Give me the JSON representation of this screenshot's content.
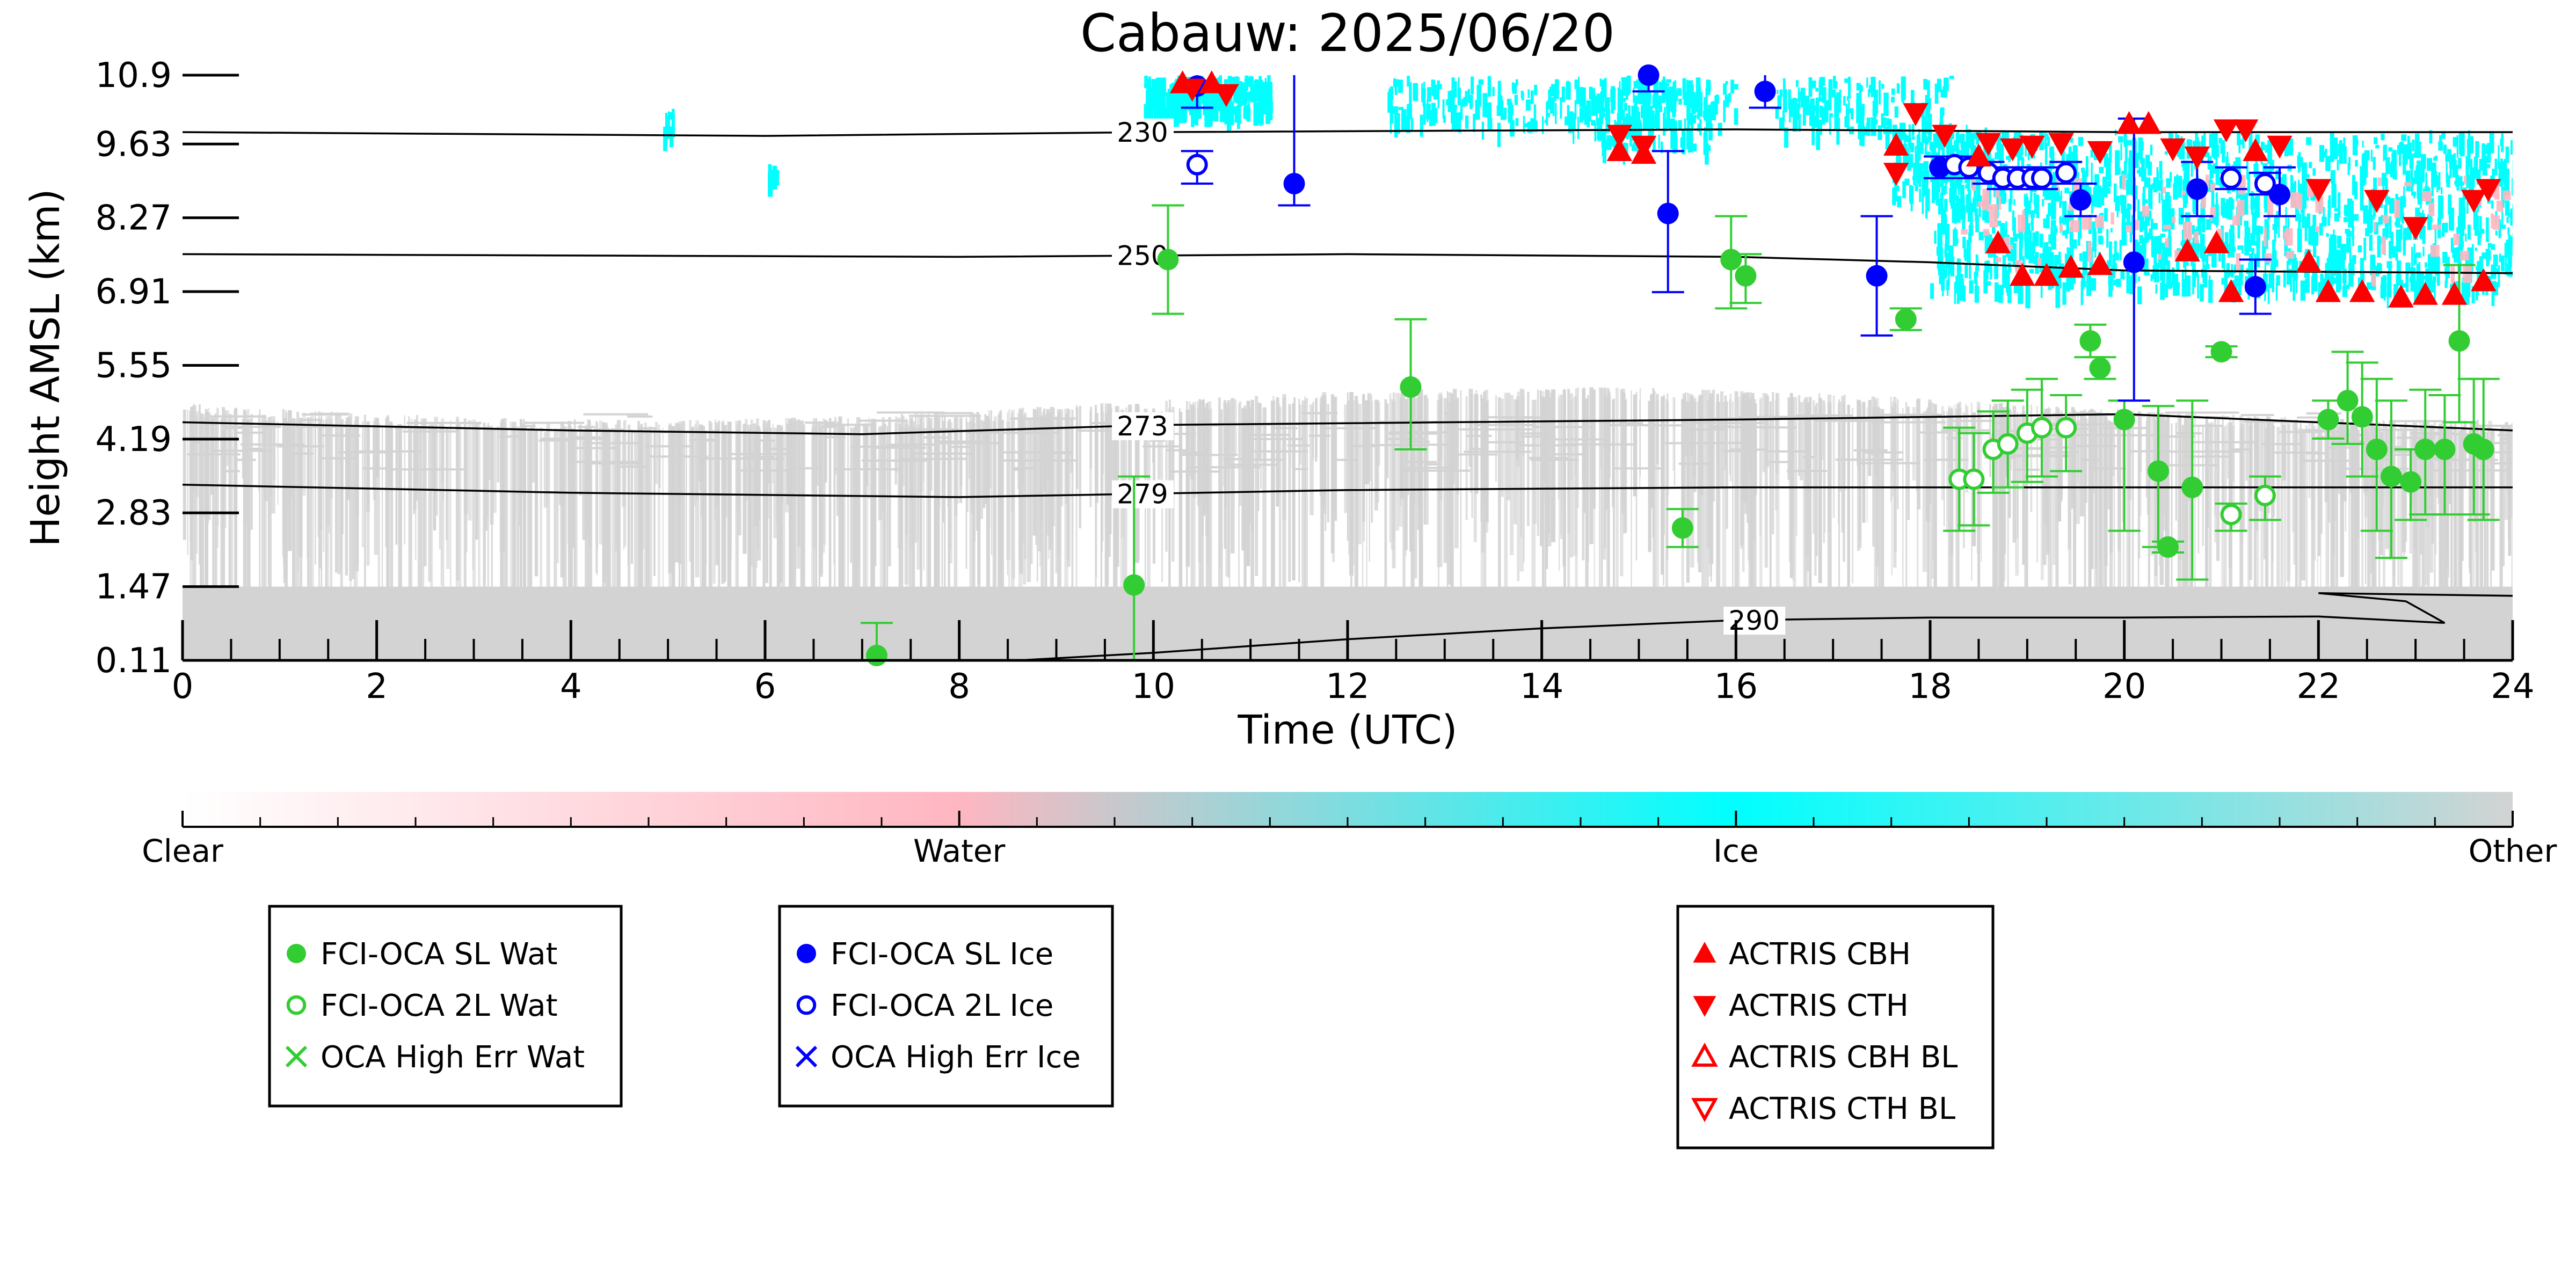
{
  "chart_data": {
    "type": "scatter",
    "title": "Cabauw: 2025/06/20",
    "xlabel": "Time (UTC)",
    "ylabel": "Height AMSL (km)",
    "xlim": [
      0,
      24
    ],
    "ylim": [
      0.11,
      10.9
    ],
    "x_ticks": [
      "0",
      "2",
      "4",
      "6",
      "8",
      "10",
      "12",
      "14",
      "16",
      "18",
      "20",
      "22",
      "24"
    ],
    "y_ticks": [
      "0.11",
      "1.47",
      "2.83",
      "4.19",
      "5.55",
      "6.91",
      "8.27",
      "9.63",
      "10.9"
    ],
    "grid": false,
    "background_cloud_mask": {
      "colorbar_labels": [
        "Clear",
        "Water",
        "Ice",
        "Other"
      ],
      "colors": {
        "clear": "#ffffff",
        "water": "#ffb6c1",
        "ice": "#00ffff",
        "other": "#d3d3d3"
      }
    },
    "temperature_contours": [
      {
        "label": "230",
        "label_time": 9.6,
        "points": [
          [
            0,
            9.85
          ],
          [
            6,
            9.78
          ],
          [
            10,
            9.85
          ],
          [
            16,
            9.9
          ],
          [
            20,
            9.85
          ],
          [
            24,
            9.85
          ]
        ]
      },
      {
        "label": "250",
        "label_time": 9.6,
        "points": [
          [
            0,
            7.6
          ],
          [
            8,
            7.55
          ],
          [
            12,
            7.6
          ],
          [
            16,
            7.55
          ],
          [
            18,
            7.45
          ],
          [
            20,
            7.3
          ],
          [
            24,
            7.25
          ]
        ]
      },
      {
        "label": "273",
        "label_time": 9.6,
        "points": [
          [
            0,
            4.5
          ],
          [
            4,
            4.35
          ],
          [
            7,
            4.28
          ],
          [
            10,
            4.45
          ],
          [
            16,
            4.55
          ],
          [
            20,
            4.65
          ],
          [
            24,
            4.35
          ]
        ]
      },
      {
        "label": "279",
        "label_time": 9.6,
        "points": [
          [
            0,
            3.35
          ],
          [
            4,
            3.2
          ],
          [
            8,
            3.12
          ],
          [
            12,
            3.25
          ],
          [
            16,
            3.3
          ],
          [
            20,
            3.3
          ],
          [
            24,
            3.3
          ]
        ]
      },
      {
        "label": "290",
        "label_time": 15.9,
        "points": [
          [
            8.6,
            0.11
          ],
          [
            10,
            0.25
          ],
          [
            12,
            0.5
          ],
          [
            14,
            0.7
          ],
          [
            16,
            0.85
          ],
          [
            18,
            0.9
          ],
          [
            20,
            0.9
          ],
          [
            22,
            0.92
          ],
          [
            23.3,
            0.8
          ],
          [
            22.9,
            1.2
          ],
          [
            22,
            1.35
          ],
          [
            24,
            1.3
          ]
        ]
      }
    ],
    "series": [
      {
        "name": "FCI-OCA SL Wat",
        "color": "#32cd32",
        "marker": "filled-circle",
        "points": [
          {
            "x": 7.15,
            "y": 0.2,
            "lo": 0.0,
            "hi": 0.8
          },
          {
            "x": 9.8,
            "y": 1.5,
            "lo": 0.0,
            "hi": 3.5
          },
          {
            "x": 10.15,
            "y": 7.5,
            "lo": 6.5,
            "hi": 8.5
          },
          {
            "x": 12.65,
            "y": 5.15,
            "lo": 4.0,
            "hi": 6.4
          },
          {
            "x": 15.45,
            "y": 2.55,
            "lo": 2.2,
            "hi": 2.9
          },
          {
            "x": 15.95,
            "y": 7.5,
            "lo": 6.6,
            "hi": 8.3
          },
          {
            "x": 16.1,
            "y": 7.2,
            "lo": 6.7,
            "hi": 7.6
          },
          {
            "x": 17.75,
            "y": 6.4,
            "lo": 6.2,
            "hi": 6.6
          },
          {
            "x": 19.65,
            "y": 6.0,
            "lo": 5.7,
            "hi": 6.3
          },
          {
            "x": 19.75,
            "y": 5.5,
            "lo": 5.3,
            "hi": 5.7
          },
          {
            "x": 20.0,
            "y": 4.55,
            "lo": 2.5,
            "hi": 4.9
          },
          {
            "x": 20.35,
            "y": 3.6,
            "lo": 2.2,
            "hi": 4.8
          },
          {
            "x": 20.45,
            "y": 2.2,
            "lo": 2.1,
            "hi": 2.3
          },
          {
            "x": 20.7,
            "y": 3.3,
            "lo": 1.6,
            "hi": 4.9
          },
          {
            "x": 21.0,
            "y": 5.8,
            "lo": 5.7,
            "hi": 5.9
          },
          {
            "x": 22.1,
            "y": 4.55,
            "lo": 4.2,
            "hi": 4.9
          },
          {
            "x": 22.3,
            "y": 4.9,
            "lo": 4.1,
            "hi": 5.8
          },
          {
            "x": 22.45,
            "y": 4.6,
            "lo": 3.5,
            "hi": 5.6
          },
          {
            "x": 22.6,
            "y": 4.0,
            "lo": 2.5,
            "hi": 5.3
          },
          {
            "x": 22.75,
            "y": 3.5,
            "lo": 2.0,
            "hi": 4.9
          },
          {
            "x": 22.95,
            "y": 3.4,
            "lo": 2.7,
            "hi": 4.0
          },
          {
            "x": 23.1,
            "y": 4.0,
            "lo": 2.8,
            "hi": 5.1
          },
          {
            "x": 23.3,
            "y": 4.0,
            "lo": 2.8,
            "hi": 5.0
          },
          {
            "x": 23.45,
            "y": 6.0,
            "lo": 4.5,
            "hi": 7.4
          },
          {
            "x": 23.6,
            "y": 4.1,
            "lo": 2.8,
            "hi": 5.3
          },
          {
            "x": 23.7,
            "y": 4.0,
            "lo": 2.7,
            "hi": 5.3
          }
        ]
      },
      {
        "name": "FCI-OCA 2L Wat",
        "color": "#32cd32",
        "marker": "open-circle",
        "points": [
          {
            "x": 18.3,
            "y": 3.45,
            "lo": 2.5,
            "hi": 4.4
          },
          {
            "x": 18.45,
            "y": 3.45,
            "lo": 2.6,
            "hi": 4.3
          },
          {
            "x": 18.65,
            "y": 4.0,
            "lo": 3.2,
            "hi": 4.7
          },
          {
            "x": 18.8,
            "y": 4.1,
            "lo": 3.3,
            "hi": 4.9
          },
          {
            "x": 19.0,
            "y": 4.3,
            "lo": 3.4,
            "hi": 5.1
          },
          {
            "x": 19.15,
            "y": 4.4,
            "lo": 3.5,
            "hi": 5.3
          },
          {
            "x": 19.4,
            "y": 4.4,
            "lo": 3.6,
            "hi": 5.0
          },
          {
            "x": 21.1,
            "y": 2.8,
            "lo": 2.5,
            "hi": 3.0
          },
          {
            "x": 21.45,
            "y": 3.15,
            "lo": 2.7,
            "hi": 3.5
          }
        ]
      },
      {
        "name": "OCA High Err Wat",
        "color": "#32cd32",
        "marker": "x",
        "points": []
      },
      {
        "name": "FCI-OCA SL Ice",
        "color": "#0000ff",
        "marker": "filled-circle",
        "points": [
          {
            "x": 10.45,
            "y": 10.7,
            "lo": 10.3,
            "hi": 10.9
          },
          {
            "x": 11.45,
            "y": 8.9,
            "lo": 8.5,
            "hi": 10.9
          },
          {
            "x": 15.1,
            "y": 10.9,
            "lo": 10.6,
            "hi": 10.9
          },
          {
            "x": 15.3,
            "y": 8.35,
            "lo": 6.9,
            "hi": 9.5
          },
          {
            "x": 16.3,
            "y": 10.6,
            "lo": 10.3,
            "hi": 10.9
          },
          {
            "x": 17.45,
            "y": 7.2,
            "lo": 6.1,
            "hi": 8.3
          },
          {
            "x": 18.1,
            "y": 9.2,
            "lo": 9.0,
            "hi": 9.4
          },
          {
            "x": 19.55,
            "y": 8.6,
            "lo": 8.3,
            "hi": 8.9
          },
          {
            "x": 20.1,
            "y": 7.45,
            "lo": 4.9,
            "hi": 10.1
          },
          {
            "x": 20.75,
            "y": 8.8,
            "lo": 8.3,
            "hi": 9.3
          },
          {
            "x": 21.35,
            "y": 7.0,
            "lo": 6.5,
            "hi": 7.5
          },
          {
            "x": 21.6,
            "y": 8.7,
            "lo": 8.3,
            "hi": 9.2
          }
        ]
      },
      {
        "name": "FCI-OCA 2L Ice",
        "color": "#0000ff",
        "marker": "open-circle",
        "points": [
          {
            "x": 10.45,
            "y": 9.25,
            "lo": 8.9,
            "hi": 9.5
          },
          {
            "x": 18.25,
            "y": 9.25,
            "lo": 9.1,
            "hi": 9.4
          },
          {
            "x": 18.4,
            "y": 9.2,
            "lo": 9.0,
            "hi": 9.4
          },
          {
            "x": 18.6,
            "y": 9.1,
            "lo": 8.9,
            "hi": 9.3
          },
          {
            "x": 18.75,
            "y": 9.0,
            "lo": 8.8,
            "hi": 9.2
          },
          {
            "x": 18.9,
            "y": 9.0,
            "lo": 8.8,
            "hi": 9.2
          },
          {
            "x": 19.05,
            "y": 9.0,
            "lo": 8.8,
            "hi": 9.2
          },
          {
            "x": 19.15,
            "y": 9.0,
            "lo": 8.8,
            "hi": 9.2
          },
          {
            "x": 19.4,
            "y": 9.1,
            "lo": 8.9,
            "hi": 9.3
          },
          {
            "x": 21.1,
            "y": 9.0,
            "lo": 8.8,
            "hi": 9.2
          },
          {
            "x": 21.45,
            "y": 8.9,
            "lo": 8.7,
            "hi": 9.1
          }
        ]
      },
      {
        "name": "OCA High Err Ice",
        "color": "#0000ff",
        "marker": "x",
        "points": []
      },
      {
        "name": "ACTRIS CBH",
        "color": "#ff0000",
        "marker": "filled-triangle-up",
        "points": [
          {
            "x": 10.3,
            "y": 10.75
          },
          {
            "x": 10.6,
            "y": 10.75
          },
          {
            "x": 14.8,
            "y": 9.5
          },
          {
            "x": 15.05,
            "y": 9.45
          },
          {
            "x": 17.65,
            "y": 9.6
          },
          {
            "x": 18.5,
            "y": 9.4
          },
          {
            "x": 18.7,
            "y": 7.8
          },
          {
            "x": 18.95,
            "y": 7.2
          },
          {
            "x": 19.2,
            "y": 7.2
          },
          {
            "x": 19.45,
            "y": 7.35
          },
          {
            "x": 19.75,
            "y": 7.4
          },
          {
            "x": 20.05,
            "y": 10.0
          },
          {
            "x": 20.25,
            "y": 10.0
          },
          {
            "x": 20.65,
            "y": 7.65
          },
          {
            "x": 20.95,
            "y": 7.8
          },
          {
            "x": 21.1,
            "y": 6.9
          },
          {
            "x": 21.35,
            "y": 9.5
          },
          {
            "x": 21.9,
            "y": 7.45
          },
          {
            "x": 22.1,
            "y": 6.9
          },
          {
            "x": 22.45,
            "y": 6.9
          },
          {
            "x": 22.85,
            "y": 6.8
          },
          {
            "x": 23.1,
            "y": 6.85
          },
          {
            "x": 23.4,
            "y": 6.85
          },
          {
            "x": 23.7,
            "y": 7.1
          }
        ]
      },
      {
        "name": "ACTRIS CTH",
        "color": "#ff0000",
        "marker": "filled-triangle-down",
        "points": [
          {
            "x": 10.4,
            "y": 10.65
          },
          {
            "x": 10.75,
            "y": 10.55
          },
          {
            "x": 14.8,
            "y": 9.8
          },
          {
            "x": 15.05,
            "y": 9.6
          },
          {
            "x": 17.65,
            "y": 9.1
          },
          {
            "x": 17.85,
            "y": 10.2
          },
          {
            "x": 18.15,
            "y": 9.8
          },
          {
            "x": 18.6,
            "y": 9.65
          },
          {
            "x": 18.85,
            "y": 9.55
          },
          {
            "x": 19.05,
            "y": 9.6
          },
          {
            "x": 19.35,
            "y": 9.65
          },
          {
            "x": 19.75,
            "y": 9.5
          },
          {
            "x": 20.5,
            "y": 9.55
          },
          {
            "x": 20.75,
            "y": 9.4
          },
          {
            "x": 21.05,
            "y": 9.9
          },
          {
            "x": 21.25,
            "y": 9.9
          },
          {
            "x": 21.6,
            "y": 9.6
          },
          {
            "x": 22.0,
            "y": 8.8
          },
          {
            "x": 22.6,
            "y": 8.6
          },
          {
            "x": 23.0,
            "y": 8.1
          },
          {
            "x": 23.6,
            "y": 8.6
          },
          {
            "x": 23.75,
            "y": 8.8
          }
        ]
      },
      {
        "name": "ACTRIS CBH BL",
        "color": "#ff0000",
        "marker": "open-triangle-up",
        "points": []
      },
      {
        "name": "ACTRIS CTH BL",
        "color": "#ff0000",
        "marker": "open-triangle-down",
        "points": []
      }
    ],
    "legends": [
      [
        "FCI-OCA SL Wat",
        "FCI-OCA 2L Wat",
        "OCA High Err Wat"
      ],
      [
        "FCI-OCA SL Ice",
        "FCI-OCA 2L Ice",
        "OCA High Err Ice"
      ],
      [
        "ACTRIS CBH",
        "ACTRIS CTH",
        "ACTRIS CBH BL",
        "ACTRIS CTH BL"
      ]
    ],
    "legend_placement": "below the colorbar, three boxes"
  }
}
